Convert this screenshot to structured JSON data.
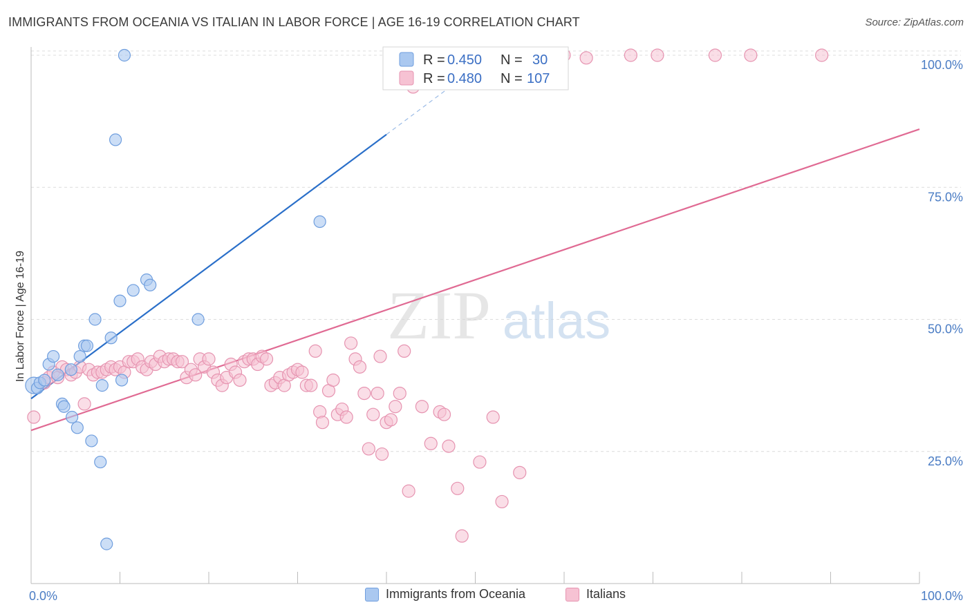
{
  "header": {
    "title": "IMMIGRANTS FROM OCEANIA VS ITALIAN IN LABOR FORCE | AGE 16-19 CORRELATION CHART",
    "source": "Source: ZipAtlas.com"
  },
  "watermark": {
    "zip": "ZIP",
    "atlas": "atlas"
  },
  "colors": {
    "blue_fill": "#aac8f0",
    "blue_stroke": "#6f9ede",
    "blue_line": "#2a6fc9",
    "pink_fill": "#f6c2d3",
    "pink_stroke": "#e693b0",
    "pink_line": "#e06a93",
    "grid": "#dcdcdc",
    "axis_label": "#4a7cc4"
  },
  "legend": {
    "rows": [
      {
        "r_label": "R = ",
        "r_value": "0.450",
        "n_label": "N = ",
        "n_value": "30"
      },
      {
        "r_label": "R = ",
        "r_value": "0.480",
        "n_label": "N = ",
        "n_value": "107"
      }
    ]
  },
  "chart_data": {
    "type": "scatter",
    "title": "IMMIGRANTS FROM OCEANIA VS ITALIAN IN LABOR FORCE | AGE 16-19 CORRELATION CHART",
    "xlabel": "",
    "ylabel": "In Labor Force | Age 16-19",
    "xlim": [
      0,
      100
    ],
    "ylim": [
      0,
      102
    ],
    "x_tick_labels": [
      "0.0%",
      "100.0%"
    ],
    "y_ticks": [
      25,
      50,
      75,
      100
    ],
    "y_tick_labels": [
      "25.0%",
      "50.0%",
      "75.0%",
      "100.0%"
    ],
    "grid": true,
    "legend_position": "top-center",
    "series": [
      {
        "name": "Immigrants from Oceania",
        "R": 0.45,
        "N": 30,
        "trend": {
          "x0": 0,
          "y0": 35.0,
          "x1": 40,
          "y1": 85.0,
          "dashed_to_x": 49,
          "dashed_to_y": 96.3
        },
        "points": [
          [
            0.3,
            37.5
          ],
          [
            0.7,
            37.0
          ],
          [
            1.0,
            38.0
          ],
          [
            1.5,
            38.5
          ],
          [
            2.0,
            41.5
          ],
          [
            2.5,
            43.0
          ],
          [
            3.0,
            39.5
          ],
          [
            3.5,
            34.0
          ],
          [
            3.7,
            33.5
          ],
          [
            4.5,
            40.5
          ],
          [
            4.6,
            31.5
          ],
          [
            5.2,
            29.5
          ],
          [
            5.5,
            43.0
          ],
          [
            6.0,
            45.0
          ],
          [
            6.3,
            45.0
          ],
          [
            6.8,
            27.0
          ],
          [
            7.2,
            50.0
          ],
          [
            7.8,
            23.0
          ],
          [
            8.0,
            37.5
          ],
          [
            8.5,
            7.5
          ],
          [
            9.0,
            46.5
          ],
          [
            9.5,
            84.0
          ],
          [
            10.0,
            53.5
          ],
          [
            10.2,
            38.5
          ],
          [
            10.5,
            100.0
          ],
          [
            11.5,
            55.5
          ],
          [
            13.0,
            57.5
          ],
          [
            13.4,
            56.5
          ],
          [
            18.8,
            50.0
          ],
          [
            32.5,
            68.5
          ]
        ]
      },
      {
        "name": "Italians",
        "R": 0.48,
        "N": 107,
        "trend": {
          "x0": 0,
          "y0": 29.0,
          "x1": 100,
          "y1": 86.0
        },
        "points": [
          [
            0.3,
            31.5
          ],
          [
            1.5,
            38.0
          ],
          [
            2.0,
            39.0
          ],
          [
            2.5,
            40.0
          ],
          [
            3.0,
            39.0
          ],
          [
            3.5,
            41.0
          ],
          [
            4.0,
            40.5
          ],
          [
            4.5,
            39.5
          ],
          [
            5.0,
            40.0
          ],
          [
            5.5,
            41.0
          ],
          [
            6.0,
            34.0
          ],
          [
            6.5,
            40.5
          ],
          [
            7.0,
            39.5
          ],
          [
            7.5,
            40.0
          ],
          [
            8.0,
            40.0
          ],
          [
            8.5,
            40.5
          ],
          [
            9.0,
            41.0
          ],
          [
            9.5,
            40.5
          ],
          [
            10.0,
            41.0
          ],
          [
            10.5,
            40.0
          ],
          [
            11.0,
            42.0
          ],
          [
            11.5,
            42.0
          ],
          [
            12.0,
            42.5
          ],
          [
            12.5,
            41.0
          ],
          [
            13.0,
            40.5
          ],
          [
            13.5,
            42.0
          ],
          [
            14.0,
            41.5
          ],
          [
            14.5,
            43.0
          ],
          [
            15.0,
            42.0
          ],
          [
            15.5,
            42.5
          ],
          [
            16.0,
            42.5
          ],
          [
            16.5,
            42.0
          ],
          [
            17.0,
            42.0
          ],
          [
            17.5,
            39.0
          ],
          [
            18.0,
            40.5
          ],
          [
            18.5,
            39.5
          ],
          [
            19.0,
            42.5
          ],
          [
            19.5,
            41.0
          ],
          [
            20.0,
            42.5
          ],
          [
            20.5,
            40.0
          ],
          [
            21.0,
            38.5
          ],
          [
            21.5,
            37.5
          ],
          [
            22.0,
            39.0
          ],
          [
            22.5,
            41.5
          ],
          [
            23.0,
            40.0
          ],
          [
            23.5,
            38.5
          ],
          [
            24.0,
            42.0
          ],
          [
            24.5,
            42.5
          ],
          [
            25.0,
            42.5
          ],
          [
            25.5,
            41.5
          ],
          [
            26.0,
            43.0
          ],
          [
            26.5,
            42.5
          ],
          [
            27.0,
            37.5
          ],
          [
            27.5,
            38.0
          ],
          [
            28.0,
            39.0
          ],
          [
            28.5,
            37.5
          ],
          [
            29.0,
            39.5
          ],
          [
            29.5,
            40.0
          ],
          [
            30.0,
            40.5
          ],
          [
            30.5,
            40.0
          ],
          [
            31.0,
            37.5
          ],
          [
            31.5,
            37.5
          ],
          [
            32.0,
            44.0
          ],
          [
            32.5,
            32.5
          ],
          [
            32.8,
            30.5
          ],
          [
            33.5,
            36.5
          ],
          [
            34.0,
            38.5
          ],
          [
            34.5,
            32.0
          ],
          [
            35.0,
            33.0
          ],
          [
            35.5,
            31.5
          ],
          [
            36.0,
            45.5
          ],
          [
            36.5,
            42.5
          ],
          [
            37.0,
            41.0
          ],
          [
            37.5,
            36.0
          ],
          [
            38.0,
            25.5
          ],
          [
            38.5,
            32.0
          ],
          [
            39.0,
            36.0
          ],
          [
            39.3,
            43.0
          ],
          [
            39.5,
            24.5
          ],
          [
            40.0,
            30.5
          ],
          [
            40.5,
            31.0
          ],
          [
            41.0,
            33.5
          ],
          [
            41.5,
            36.0
          ],
          [
            42.0,
            44.0
          ],
          [
            42.5,
            17.5
          ],
          [
            43.0,
            94.0
          ],
          [
            44.0,
            33.5
          ],
          [
            45.0,
            26.5
          ],
          [
            46.0,
            32.5
          ],
          [
            46.5,
            32.0
          ],
          [
            47.0,
            26.0
          ],
          [
            47.3,
            100.0
          ],
          [
            48.0,
            18.0
          ],
          [
            48.5,
            9.0
          ],
          [
            50.5,
            23.0
          ],
          [
            52.0,
            31.5
          ],
          [
            53.0,
            15.5
          ],
          [
            55.0,
            21.0
          ],
          [
            56.5,
            100.0
          ],
          [
            58.0,
            100.0
          ],
          [
            60.0,
            100.0
          ],
          [
            62.5,
            99.5
          ],
          [
            67.5,
            100.0
          ],
          [
            70.5,
            100.0
          ],
          [
            77.0,
            100.0
          ],
          [
            81.0,
            100.0
          ],
          [
            89.0,
            100.0
          ]
        ]
      }
    ]
  },
  "bottom_legend": {
    "items": [
      {
        "label": "Immigrants from Oceania"
      },
      {
        "label": "Italians"
      }
    ]
  }
}
